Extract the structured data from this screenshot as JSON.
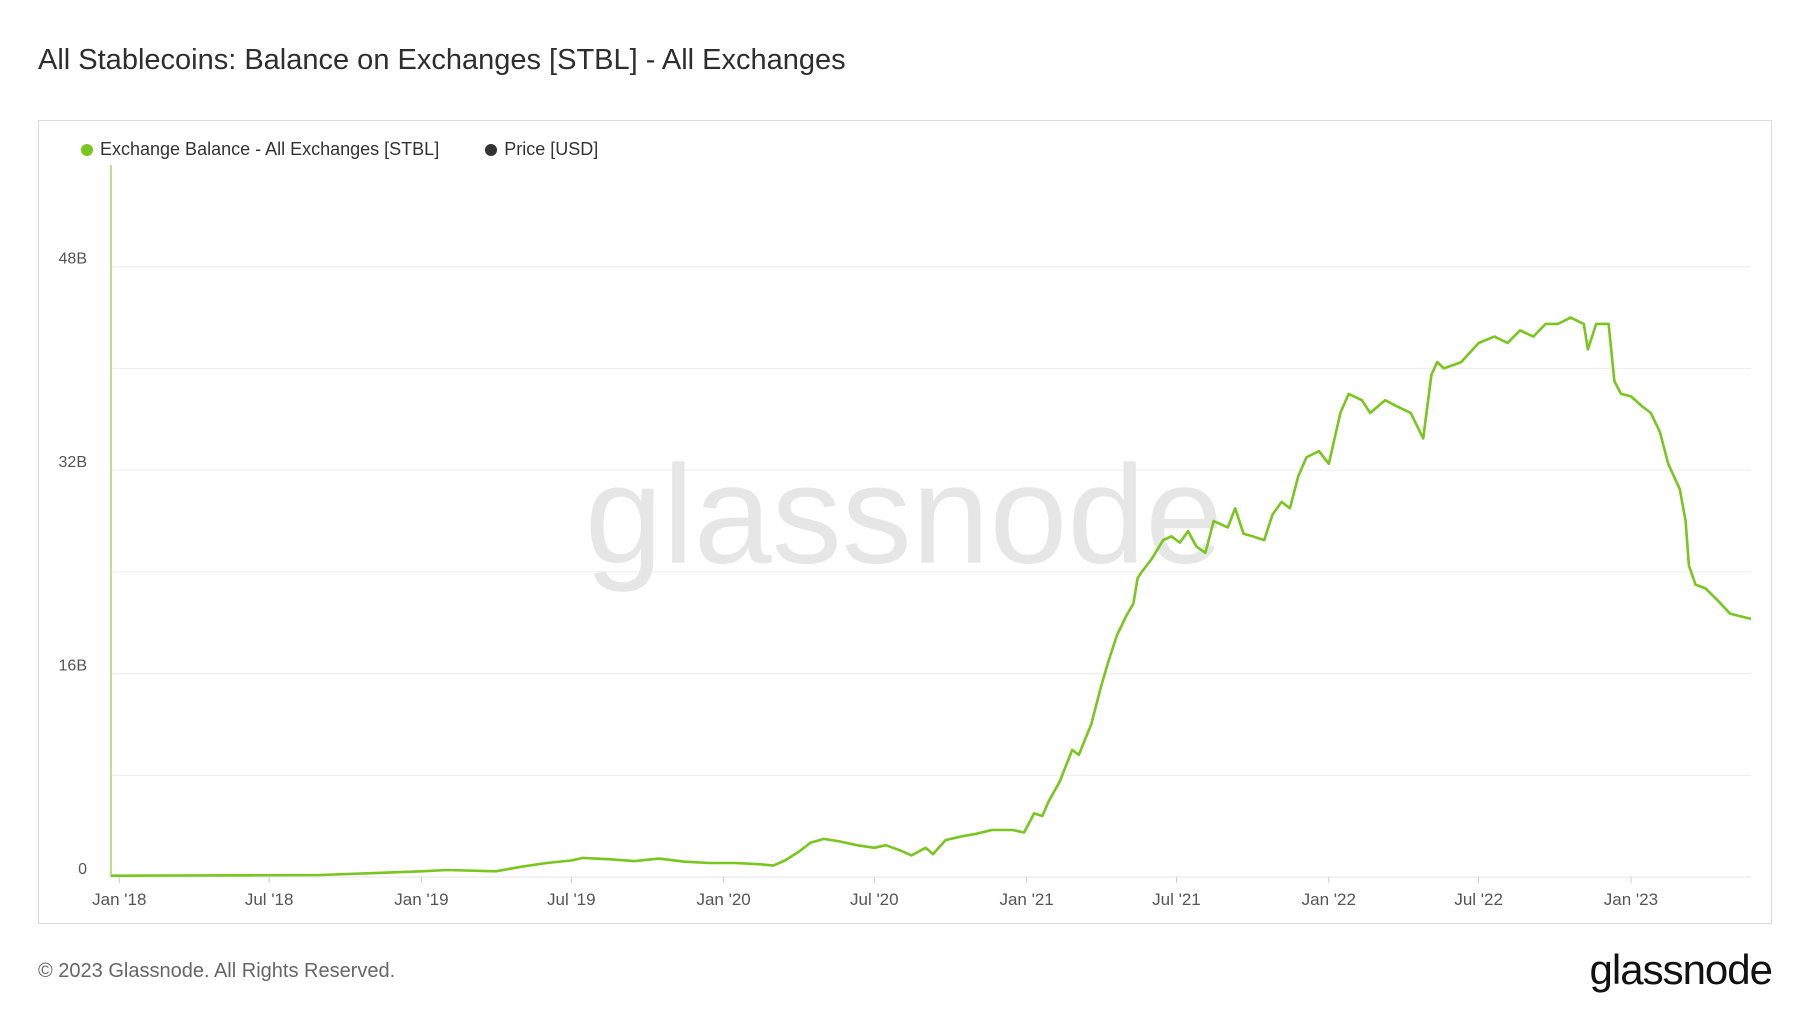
{
  "header": {
    "title": "All Stablecoins: Balance on Exchanges [STBL] - All Exchanges"
  },
  "footer": {
    "copyright": "© 2023 Glassnode. All Rights Reserved.",
    "logo_text": "glassnode"
  },
  "watermark": "glassnode",
  "colors": {
    "series": "#7ac51e",
    "price": "#333333",
    "grid": "#ececec",
    "axis_text": "#555555",
    "watermark": "#e6e6e6"
  },
  "chart_data": {
    "type": "line",
    "legend": [
      {
        "name": "Exchange Balance - All Exchanges [STBL]",
        "color": "#7ac51e"
      },
      {
        "name": "Price [USD]",
        "color": "#333333"
      }
    ],
    "legend_position": "top-left",
    "grid": true,
    "y_ticks": [
      {
        "value": 0,
        "label": "0"
      },
      {
        "value": 16,
        "label": "16B"
      },
      {
        "value": 32,
        "label": "32B"
      },
      {
        "value": 48,
        "label": "48B"
      }
    ],
    "y_unit": "B",
    "ylim": [
      0,
      56
    ],
    "xlim": [
      "2017-12-22",
      "2023-05-26"
    ],
    "x_ticks": [
      {
        "date": "2018-01-01",
        "label": "Jan '18"
      },
      {
        "date": "2018-07-01",
        "label": "Jul '18"
      },
      {
        "date": "2019-01-01",
        "label": "Jan '19"
      },
      {
        "date": "2019-07-01",
        "label": "Jul '19"
      },
      {
        "date": "2020-01-01",
        "label": "Jan '20"
      },
      {
        "date": "2020-07-01",
        "label": "Jul '20"
      },
      {
        "date": "2021-01-01",
        "label": "Jan '21"
      },
      {
        "date": "2021-07-01",
        "label": "Jul '21"
      },
      {
        "date": "2022-01-01",
        "label": "Jan '22"
      },
      {
        "date": "2022-07-01",
        "label": "Jul '22"
      },
      {
        "date": "2023-01-01",
        "label": "Jan '23"
      }
    ],
    "series": [
      {
        "name": "Exchange Balance - All Exchanges [STBL]",
        "points": [
          [
            "2017-12-22",
            0.1
          ],
          [
            "2018-03-01",
            0.12
          ],
          [
            "2018-06-01",
            0.13
          ],
          [
            "2018-09-01",
            0.16
          ],
          [
            "2018-11-01",
            0.3
          ],
          [
            "2019-01-01",
            0.45
          ],
          [
            "2019-02-01",
            0.55
          ],
          [
            "2019-04-01",
            0.45
          ],
          [
            "2019-05-01",
            0.8
          ],
          [
            "2019-06-01",
            1.1
          ],
          [
            "2019-07-01",
            1.3
          ],
          [
            "2019-07-15",
            1.5
          ],
          [
            "2019-08-15",
            1.4
          ],
          [
            "2019-09-15",
            1.25
          ],
          [
            "2019-10-15",
            1.45
          ],
          [
            "2019-11-15",
            1.2
          ],
          [
            "2019-12-15",
            1.1
          ],
          [
            "2020-01-15",
            1.1
          ],
          [
            "2020-02-15",
            1.0
          ],
          [
            "2020-03-01",
            0.9
          ],
          [
            "2020-03-15",
            1.3
          ],
          [
            "2020-04-01",
            2.0
          ],
          [
            "2020-04-15",
            2.7
          ],
          [
            "2020-05-01",
            3.0
          ],
          [
            "2020-05-20",
            2.8
          ],
          [
            "2020-06-10",
            2.5
          ],
          [
            "2020-07-01",
            2.3
          ],
          [
            "2020-07-15",
            2.5
          ],
          [
            "2020-08-01",
            2.1
          ],
          [
            "2020-08-15",
            1.7
          ],
          [
            "2020-09-01",
            2.3
          ],
          [
            "2020-09-10",
            1.8
          ],
          [
            "2020-09-25",
            2.9
          ],
          [
            "2020-10-15",
            3.2
          ],
          [
            "2020-11-01",
            3.4
          ],
          [
            "2020-11-20",
            3.7
          ],
          [
            "2020-12-15",
            3.7
          ],
          [
            "2020-12-29",
            3.5
          ],
          [
            "2021-01-10",
            5.0
          ],
          [
            "2021-01-20",
            4.8
          ],
          [
            "2021-01-28",
            6.0
          ],
          [
            "2021-02-10",
            7.5
          ],
          [
            "2021-02-25",
            10.0
          ],
          [
            "2021-03-05",
            9.6
          ],
          [
            "2021-03-20",
            12.0
          ],
          [
            "2021-04-01",
            15.0
          ],
          [
            "2021-04-10",
            17.0
          ],
          [
            "2021-04-20",
            19.0
          ],
          [
            "2021-05-01",
            20.5
          ],
          [
            "2021-05-10",
            21.5
          ],
          [
            "2021-05-15",
            23.5
          ],
          [
            "2021-05-20",
            24.0
          ],
          [
            "2021-06-01",
            25.0
          ],
          [
            "2021-06-15",
            26.5
          ],
          [
            "2021-06-25",
            26.8
          ],
          [
            "2021-07-05",
            26.3
          ],
          [
            "2021-07-15",
            27.2
          ],
          [
            "2021-07-25",
            26.0
          ],
          [
            "2021-08-05",
            25.5
          ],
          [
            "2021-08-15",
            28.0
          ],
          [
            "2021-09-01",
            27.5
          ],
          [
            "2021-09-10",
            29.0
          ],
          [
            "2021-09-20",
            27.0
          ],
          [
            "2021-10-01",
            26.8
          ],
          [
            "2021-10-15",
            26.5
          ],
          [
            "2021-10-25",
            28.5
          ],
          [
            "2021-11-05",
            29.5
          ],
          [
            "2021-11-15",
            29.0
          ],
          [
            "2021-11-25",
            31.5
          ],
          [
            "2021-12-05",
            33.0
          ],
          [
            "2021-12-20",
            33.5
          ],
          [
            "2022-01-01",
            32.5
          ],
          [
            "2022-01-15",
            36.5
          ],
          [
            "2022-01-25",
            38.0
          ],
          [
            "2022-02-10",
            37.5
          ],
          [
            "2022-02-20",
            36.5
          ],
          [
            "2022-03-10",
            37.5
          ],
          [
            "2022-03-25",
            37.0
          ],
          [
            "2022-04-10",
            36.5
          ],
          [
            "2022-04-25",
            34.5
          ],
          [
            "2022-05-05",
            39.5
          ],
          [
            "2022-05-12",
            40.5
          ],
          [
            "2022-05-20",
            40.0
          ],
          [
            "2022-06-10",
            40.5
          ],
          [
            "2022-07-01",
            42.0
          ],
          [
            "2022-07-20",
            42.5
          ],
          [
            "2022-08-05",
            42.0
          ],
          [
            "2022-08-20",
            43.0
          ],
          [
            "2022-09-05",
            42.5
          ],
          [
            "2022-09-20",
            43.5
          ],
          [
            "2022-10-05",
            43.5
          ],
          [
            "2022-10-20",
            44.0
          ],
          [
            "2022-11-05",
            43.5
          ],
          [
            "2022-11-10",
            41.5
          ],
          [
            "2022-11-20",
            43.5
          ],
          [
            "2022-12-05",
            43.5
          ],
          [
            "2022-12-12",
            39.0
          ],
          [
            "2022-12-20",
            38.0
          ],
          [
            "2023-01-01",
            37.8
          ],
          [
            "2023-01-15",
            37.0
          ],
          [
            "2023-01-25",
            36.5
          ],
          [
            "2023-02-05",
            35.0
          ],
          [
            "2023-02-15",
            32.5
          ],
          [
            "2023-03-01",
            30.5
          ],
          [
            "2023-03-08",
            28.0
          ],
          [
            "2023-03-12",
            24.5
          ],
          [
            "2023-03-20",
            23.0
          ],
          [
            "2023-04-01",
            22.7
          ],
          [
            "2023-04-15",
            21.8
          ],
          [
            "2023-05-01",
            20.7
          ],
          [
            "2023-05-26",
            20.3
          ]
        ]
      }
    ]
  }
}
